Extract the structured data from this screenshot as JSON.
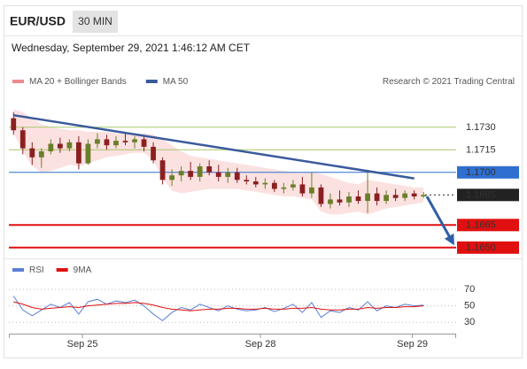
{
  "header": {
    "symbol": "EUR/USD",
    "timeframe": "30 MIN",
    "datetime": "Wednesday, September 29, 2021 1:46:12 AM CET"
  },
  "chart_data": [
    {
      "type": "candlestick",
      "legend": [
        {
          "name": "MA 20 + Bollinger Bands",
          "color": "#f08a8a"
        },
        {
          "name": "MA 50",
          "color": "#3a5a9c"
        }
      ],
      "credit": "Research © 2021 Trading Central",
      "xlim": [
        0,
        48
      ],
      "ylim": [
        1.1644,
        1.1744
      ],
      "up_color": "#6b7f2a",
      "down_color": "#8b2020",
      "open": [
        1.1736,
        1.1728,
        1.1716,
        1.171,
        1.1714,
        1.1719,
        1.1716,
        1.172,
        1.1706,
        1.1719,
        1.1722,
        1.1718,
        1.1721,
        1.172,
        1.1722,
        1.1717,
        1.1708,
        1.1695,
        1.1698,
        1.1701,
        1.1697,
        1.1704,
        1.17,
        1.1697,
        1.17,
        1.1695,
        1.1694,
        1.1692,
        1.1693,
        1.1689,
        1.169,
        1.1692,
        1.1686,
        1.169,
        1.1679,
        1.1682,
        1.168,
        1.1684,
        1.1681,
        1.1686,
        1.1681,
        1.1685,
        1.1683,
        1.1686,
        1.1684
      ],
      "high": [
        1.174,
        1.173,
        1.172,
        1.1716,
        1.1722,
        1.1723,
        1.1722,
        1.1724,
        1.1722,
        1.1726,
        1.1725,
        1.1724,
        1.1726,
        1.1724,
        1.1724,
        1.172,
        1.171,
        1.1702,
        1.1704,
        1.1707,
        1.1706,
        1.1708,
        1.1705,
        1.1703,
        1.1703,
        1.1698,
        1.1697,
        1.1696,
        1.1695,
        1.1693,
        1.1695,
        1.1697,
        1.17,
        1.1692,
        1.1686,
        1.1688,
        1.1687,
        1.1688,
        1.17,
        1.169,
        1.1688,
        1.1689,
        1.1688,
        1.1688,
        1.1687
      ],
      "low": [
        1.1725,
        1.1712,
        1.1705,
        1.1703,
        1.1712,
        1.1713,
        1.1714,
        1.1702,
        1.1705,
        1.1716,
        1.1715,
        1.1716,
        1.1718,
        1.1716,
        1.1714,
        1.1706,
        1.1692,
        1.1691,
        1.1694,
        1.1695,
        1.1694,
        1.1698,
        1.1694,
        1.1693,
        1.1693,
        1.1692,
        1.169,
        1.1689,
        1.1687,
        1.1686,
        1.1688,
        1.1684,
        1.1683,
        1.1677,
        1.1676,
        1.1678,
        1.1677,
        1.1679,
        1.1673,
        1.1678,
        1.1679,
        1.1681,
        1.1681,
        1.1682,
        1.1683
      ],
      "close": [
        1.1728,
        1.1716,
        1.171,
        1.1714,
        1.1719,
        1.1716,
        1.172,
        1.1706,
        1.1719,
        1.1722,
        1.1718,
        1.1721,
        1.172,
        1.1722,
        1.1717,
        1.1708,
        1.1695,
        1.1698,
        1.1701,
        1.1697,
        1.1704,
        1.17,
        1.1697,
        1.17,
        1.1695,
        1.1694,
        1.1692,
        1.1693,
        1.1689,
        1.169,
        1.1692,
        1.1686,
        1.169,
        1.1679,
        1.1682,
        1.168,
        1.1684,
        1.1681,
        1.1686,
        1.1681,
        1.1685,
        1.1683,
        1.1686,
        1.1684,
        1.1685
      ],
      "bollinger_upper": [
        1.1742,
        1.174,
        1.1736,
        1.1732,
        1.173,
        1.1729,
        1.1728,
        1.1728,
        1.1727,
        1.1727,
        1.1727,
        1.1726,
        1.1726,
        1.1726,
        1.1726,
        1.1725,
        1.1722,
        1.1718,
        1.1714,
        1.1711,
        1.171,
        1.1709,
        1.1708,
        1.1707,
        1.1706,
        1.1705,
        1.1704,
        1.1703,
        1.1702,
        1.1701,
        1.17,
        1.17,
        1.17,
        1.1699,
        1.1697,
        1.1695,
        1.1693,
        1.1692,
        1.1695,
        1.1694,
        1.1693,
        1.1692,
        1.1691,
        1.169,
        1.169
      ],
      "bollinger_lower": [
        1.1726,
        1.1714,
        1.1704,
        1.17,
        1.1701,
        1.1703,
        1.1705,
        1.1704,
        1.1706,
        1.1708,
        1.171,
        1.1711,
        1.1712,
        1.1713,
        1.1713,
        1.1708,
        1.1696,
        1.1688,
        1.1686,
        1.1687,
        1.1688,
        1.1689,
        1.1689,
        1.1689,
        1.1689,
        1.1688,
        1.1687,
        1.1686,
        1.1685,
        1.1684,
        1.1684,
        1.1683,
        1.1682,
        1.1674,
        1.1672,
        1.1672,
        1.1673,
        1.1674,
        1.1672,
        1.1674,
        1.1676,
        1.1677,
        1.1678,
        1.1679,
        1.168
      ],
      "trendline": {
        "x": [
          0,
          43
        ],
        "values": [
          1.1738,
          1.1696
        ],
        "color": "#3a5a9c"
      },
      "price_levels": [
        {
          "value": 1.173,
          "label": "1.1730",
          "color": "#a8c86a",
          "kind": "text",
          "width": 1
        },
        {
          "value": 1.1715,
          "label": "1.1715",
          "color": "#a8c86a",
          "kind": "text",
          "width": 1
        },
        {
          "value": 1.17,
          "label": "1.1700",
          "color": "#2f6fd0",
          "kind": "box",
          "width": 1
        },
        {
          "value": 1.1685,
          "label": "1.1685",
          "color": "#222222",
          "kind": "box",
          "width": 1,
          "dash": true
        },
        {
          "value": 1.1665,
          "label": "1.1665",
          "color": "#e01010",
          "kind": "box",
          "width": 2
        },
        {
          "value": 1.165,
          "label": "1.1650",
          "color": "#e01010",
          "kind": "box",
          "width": 2
        }
      ]
    },
    {
      "type": "line",
      "xlim": [
        0,
        48
      ],
      "ylim": [
        13,
        83
      ],
      "yticks": [
        70,
        50,
        30
      ],
      "xticks": [
        {
          "value": 7.9,
          "label": "Sep 25"
        },
        {
          "value": 27,
          "label": "Sep 28"
        },
        {
          "value": 43.3,
          "label": "Sep 29"
        }
      ],
      "series": [
        {
          "name": "RSI",
          "color": "#5b7fd6",
          "values": [
            62,
            45,
            38,
            45,
            52,
            48,
            54,
            40,
            55,
            58,
            52,
            56,
            54,
            57,
            50,
            40,
            32,
            42,
            48,
            45,
            52,
            48,
            44,
            50,
            46,
            44,
            45,
            48,
            43,
            47,
            52,
            42,
            54,
            36,
            44,
            42,
            48,
            45,
            55,
            44,
            50,
            48,
            52,
            50,
            51
          ]
        },
        {
          "name": "9MA",
          "color": "#e01010",
          "values": [
            55,
            52,
            48,
            46,
            47,
            48,
            49,
            48,
            50,
            51,
            52,
            53,
            53,
            54,
            53,
            51,
            48,
            46,
            45,
            44,
            45,
            46,
            46,
            47,
            47,
            46,
            46,
            47,
            46,
            46,
            47,
            47,
            48,
            46,
            45,
            45,
            46,
            46,
            48,
            47,
            48,
            48,
            49,
            49,
            50
          ]
        }
      ]
    }
  ]
}
